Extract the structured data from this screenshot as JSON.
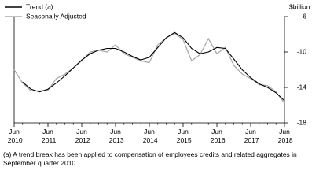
{
  "chart_data": {
    "type": "line",
    "y_label": "$billion",
    "footnote": "(a) A trend break has been applied to compensation of employees credits and related aggregates in September quarter 2010.",
    "categories": [
      "Jun 2010",
      null,
      null,
      null,
      "Jun 2011",
      null,
      null,
      null,
      "Jun 2012",
      null,
      null,
      null,
      "Jun 2013",
      null,
      null,
      null,
      "Jun 2014",
      null,
      null,
      null,
      "Jun 2015",
      null,
      null,
      null,
      "Jun 2016",
      null,
      null,
      null,
      "Jun 2017",
      null,
      null,
      null,
      "Jun 2018"
    ],
    "series": [
      {
        "name": "Trend (a)",
        "color": "#000000",
        "values": [
          null,
          -13.4,
          -14.2,
          -14.5,
          -14.2,
          -13.5,
          -12.7,
          -11.8,
          -10.9,
          -10.2,
          -9.8,
          -9.6,
          -9.6,
          -10.0,
          -10.5,
          -10.9,
          -10.6,
          -9.5,
          -8.4,
          -7.8,
          -8.4,
          -9.6,
          -10.2,
          -10.0,
          -9.5,
          -9.6,
          -10.8,
          -12.0,
          -12.9,
          -13.6,
          -14.0,
          -14.6,
          -15.5
        ]
      },
      {
        "name": "Seasonally Adjusted",
        "color": "#aaaaaa",
        "values": [
          -12.0,
          -13.5,
          -14.4,
          -14.4,
          -14.3,
          -13.0,
          -12.5,
          -11.8,
          -11.0,
          -10.0,
          -9.8,
          -10.0,
          -9.2,
          -10.2,
          -10.6,
          -11.0,
          -11.2,
          -9.2,
          -8.4,
          -7.9,
          -8.6,
          -11.0,
          -10.3,
          -8.5,
          -10.2,
          -9.5,
          -11.5,
          -12.5,
          -13.0,
          -13.7,
          -13.8,
          -14.5,
          -15.8
        ]
      }
    ],
    "ylim": [
      -18,
      -6
    ],
    "yticks": [
      -6,
      -10,
      -14,
      -18
    ]
  }
}
